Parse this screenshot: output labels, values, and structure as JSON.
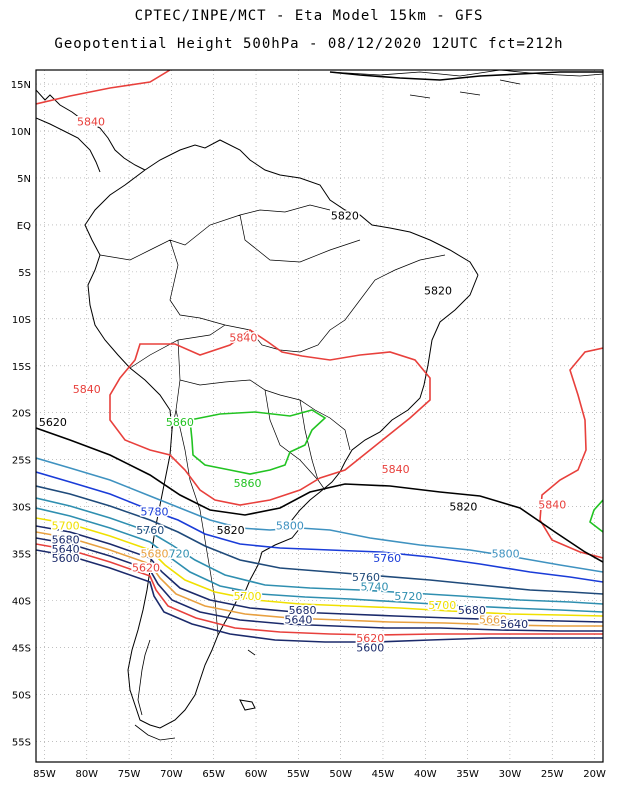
{
  "header": {
    "line1": "CPTEC/INPE/MCT -  Eta Model 15km - GFS",
    "line2": "Geopotential Height 500hPa - 08/12/2020 12UTC fct=212h"
  },
  "axes": {
    "lat_labels": [
      "15N",
      "10N",
      "5N",
      "EQ",
      "5S",
      "10S",
      "15S",
      "20S",
      "25S",
      "30S",
      "35S",
      "40S",
      "45S",
      "50S",
      "55S"
    ],
    "lon_labels": [
      "85W",
      "80W",
      "75W",
      "70W",
      "65W",
      "60W",
      "55W",
      "50W",
      "45W",
      "40W",
      "35W",
      "30W",
      "25W",
      "20W"
    ]
  },
  "colors": {
    "c5620": "#000000",
    "c5640": "#e8403c",
    "c5660": "#22c322",
    "c5680": "#1b2a6b",
    "c5700": "#f0e000",
    "c5720": "#e8a040",
    "c5740": "#2f8fb0",
    "c5760": "#1f4a7a",
    "c5780": "#1a3cd8",
    "c5800": "#3f92c0",
    "coast": "#000000",
    "grid": "#9a9a9a"
  },
  "contour_labels": [
    {
      "text": "5840",
      "color_key": "c5640",
      "lon": -79.5,
      "lat": 11.0
    },
    {
      "text": "5820",
      "color_key": "c5620",
      "lon": -49.5,
      "lat": 1.0
    },
    {
      "text": "5820",
      "color_key": "c5620",
      "lon": -38.5,
      "lat": -7.0
    },
    {
      "text": "5840",
      "color_key": "c5640",
      "lon": -61.5,
      "lat": -12.0
    },
    {
      "text": "5840",
      "color_key": "c5640",
      "lon": -80.0,
      "lat": -17.5
    },
    {
      "text": "5620",
      "color_key": "c5620",
      "lon": -84.0,
      "lat": -21.0
    },
    {
      "text": "5860",
      "color_key": "c5660",
      "lon": -69.0,
      "lat": -21.0
    },
    {
      "text": "5860",
      "color_key": "c5660",
      "lon": -61.0,
      "lat": -27.5
    },
    {
      "text": "5840",
      "color_key": "c5640",
      "lon": -43.5,
      "lat": -26.0
    },
    {
      "text": "5820",
      "color_key": "c5620",
      "lon": -35.5,
      "lat": -30.0
    },
    {
      "text": "5840",
      "color_key": "c5640",
      "lon": -25.0,
      "lat": -29.8
    },
    {
      "text": "5780",
      "color_key": "c5780",
      "lon": -72.0,
      "lat": -30.5
    },
    {
      "text": "5760",
      "color_key": "c5760",
      "lon": -72.5,
      "lat": -32.5
    },
    {
      "text": "5820",
      "color_key": "c5620",
      "lon": -63.0,
      "lat": -32.5
    },
    {
      "text": "5800",
      "color_key": "c5800",
      "lon": -56.0,
      "lat": -32.0
    },
    {
      "text": "5760",
      "color_key": "c5780",
      "lon": -44.5,
      "lat": -35.5
    },
    {
      "text": "5800",
      "color_key": "c5800",
      "lon": -30.5,
      "lat": -35.0
    },
    {
      "text": "5700",
      "color_key": "c5700",
      "lon": -82.5,
      "lat": -32.0
    },
    {
      "text": "5680",
      "color_key": "c5680",
      "lon": -82.5,
      "lat": -33.5
    },
    {
      "text": "5640",
      "color_key": "c5680",
      "lon": -82.5,
      "lat": -34.5
    },
    {
      "text": "5600",
      "color_key": "c5680",
      "lon": -82.5,
      "lat": -35.5
    },
    {
      "text": "5720",
      "color_key": "c5740",
      "lon": -69.5,
      "lat": -35.0
    },
    {
      "text": "5680",
      "color_key": "c5720",
      "lon": -72.0,
      "lat": -35.0
    },
    {
      "text": "5620",
      "color_key": "c5640",
      "lon": -73.0,
      "lat": -36.5
    },
    {
      "text": "5760",
      "color_key": "c5760",
      "lon": -47.0,
      "lat": -37.5
    },
    {
      "text": "5740",
      "color_key": "c5740",
      "lon": -46.0,
      "lat": -38.5
    },
    {
      "text": "5720",
      "color_key": "c5740",
      "lon": -42.0,
      "lat": -39.5
    },
    {
      "text": "5700",
      "color_key": "c5700",
      "lon": -61.0,
      "lat": -39.5
    },
    {
      "text": "5700",
      "color_key": "c5700",
      "lon": -38.0,
      "lat": -40.5
    },
    {
      "text": "5680",
      "color_key": "c5680",
      "lon": -54.5,
      "lat": -41.0
    },
    {
      "text": "5680",
      "color_key": "c5680",
      "lon": -34.5,
      "lat": -41.0
    },
    {
      "text": "5660",
      "color_key": "c5720",
      "lon": -32.0,
      "lat": -42.0
    },
    {
      "text": "5640",
      "color_key": "c5680",
      "lon": -55.0,
      "lat": -42.0
    },
    {
      "text": "5640",
      "color_key": "c5680",
      "lon": -29.5,
      "lat": -42.5
    },
    {
      "text": "5620",
      "color_key": "c5640",
      "lon": -46.5,
      "lat": -44.0
    },
    {
      "text": "5600",
      "color_key": "c5680",
      "lon": -46.5,
      "lat": -45.0
    }
  ]
}
